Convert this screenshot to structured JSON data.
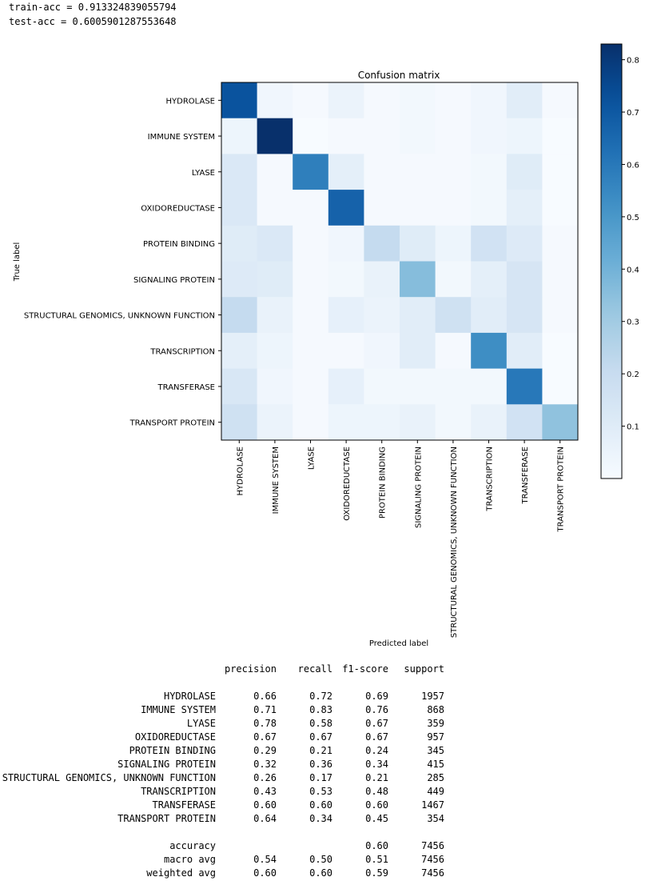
{
  "accuracy_text": {
    "train": "train-acc = 0.913324839055794",
    "test": "test-acc = 0.6005901287553648"
  },
  "chart_data": {
    "type": "heatmap",
    "title": "Confusion matrix",
    "xlabel": "Predicted label",
    "ylabel": "True label",
    "colormap": "Blues",
    "color_low": "#f7fbff",
    "color_high": "#08306b",
    "labels": [
      "HYDROLASE",
      "IMMUNE SYSTEM",
      "LYASE",
      "OXIDOREDUCTASE",
      "PROTEIN BINDING",
      "SIGNALING PROTEIN",
      "STRUCTURAL GENOMICS, UNKNOWN FUNCTION",
      "TRANSCRIPTION",
      "TRANSFERASE",
      "TRANSPORT PROTEIN"
    ],
    "matrix": [
      [
        0.72,
        0.03,
        0.01,
        0.05,
        0.01,
        0.02,
        0.01,
        0.03,
        0.09,
        0.01
      ],
      [
        0.04,
        0.83,
        0.0,
        0.01,
        0.01,
        0.02,
        0.01,
        0.03,
        0.04,
        0.0
      ],
      [
        0.12,
        0.01,
        0.58,
        0.08,
        0.01,
        0.01,
        0.01,
        0.02,
        0.1,
        0.0
      ],
      [
        0.12,
        0.01,
        0.01,
        0.67,
        0.01,
        0.01,
        0.01,
        0.02,
        0.08,
        0.0
      ],
      [
        0.1,
        0.12,
        0.01,
        0.03,
        0.21,
        0.1,
        0.04,
        0.16,
        0.11,
        0.01
      ],
      [
        0.11,
        0.1,
        0.01,
        0.02,
        0.06,
        0.36,
        0.02,
        0.08,
        0.14,
        0.01
      ],
      [
        0.21,
        0.06,
        0.01,
        0.07,
        0.05,
        0.09,
        0.17,
        0.09,
        0.14,
        0.01
      ],
      [
        0.08,
        0.04,
        0.01,
        0.01,
        0.03,
        0.09,
        0.01,
        0.53,
        0.09,
        0.0
      ],
      [
        0.13,
        0.03,
        0.01,
        0.07,
        0.02,
        0.02,
        0.02,
        0.02,
        0.6,
        0.0
      ],
      [
        0.17,
        0.05,
        0.01,
        0.04,
        0.04,
        0.06,
        0.02,
        0.06,
        0.16,
        0.34
      ]
    ],
    "colorbar": {
      "min": 0,
      "max": 0.83,
      "ticks": [
        0.1,
        0.2,
        0.3,
        0.4,
        0.5,
        0.6,
        0.7,
        0.8
      ]
    }
  },
  "report": {
    "headers": [
      "precision",
      "recall",
      "f1-score",
      "support"
    ],
    "rows": [
      {
        "label": "HYDROLASE",
        "precision": "0.66",
        "recall": "0.72",
        "f1": "0.69",
        "support": "1957"
      },
      {
        "label": "IMMUNE SYSTEM",
        "precision": "0.71",
        "recall": "0.83",
        "f1": "0.76",
        "support": "868"
      },
      {
        "label": "LYASE",
        "precision": "0.78",
        "recall": "0.58",
        "f1": "0.67",
        "support": "359"
      },
      {
        "label": "OXIDOREDUCTASE",
        "precision": "0.67",
        "recall": "0.67",
        "f1": "0.67",
        "support": "957"
      },
      {
        "label": "PROTEIN BINDING",
        "precision": "0.29",
        "recall": "0.21",
        "f1": "0.24",
        "support": "345"
      },
      {
        "label": "SIGNALING PROTEIN",
        "precision": "0.32",
        "recall": "0.36",
        "f1": "0.34",
        "support": "415"
      },
      {
        "label": "STRUCTURAL GENOMICS, UNKNOWN FUNCTION",
        "precision": "0.26",
        "recall": "0.17",
        "f1": "0.21",
        "support": "285"
      },
      {
        "label": "TRANSCRIPTION",
        "precision": "0.43",
        "recall": "0.53",
        "f1": "0.48",
        "support": "449"
      },
      {
        "label": "TRANSFERASE",
        "precision": "0.60",
        "recall": "0.60",
        "f1": "0.60",
        "support": "1467"
      },
      {
        "label": "TRANSPORT PROTEIN",
        "precision": "0.64",
        "recall": "0.34",
        "f1": "0.45",
        "support": "354"
      }
    ],
    "summary": [
      {
        "label": "accuracy",
        "precision": "",
        "recall": "",
        "f1": "0.60",
        "support": "7456"
      },
      {
        "label": "macro avg",
        "precision": "0.54",
        "recall": "0.50",
        "f1": "0.51",
        "support": "7456"
      },
      {
        "label": "weighted avg",
        "precision": "0.60",
        "recall": "0.60",
        "f1": "0.59",
        "support": "7456"
      }
    ]
  }
}
